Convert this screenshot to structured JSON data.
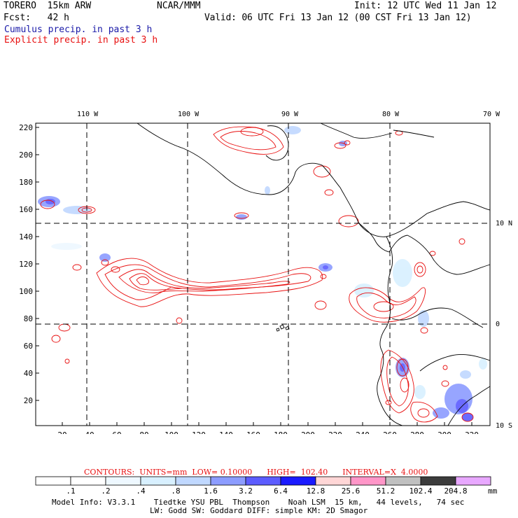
{
  "header": {
    "model": "TORERO  15km ARW",
    "center": "NCAR/MMM",
    "init": "Init: 12 UTC Wed 11 Jan 12",
    "forecast": "Fcst:   42 h",
    "valid": "Valid: 06 UTC Fri 13 Jan 12 (00 CST Fri 13 Jan 12)",
    "cumulus_label": "Cumulus precip. in past 3 h",
    "explicit_label": "Explicit precip. in past 3 h"
  },
  "map": {
    "lon_labels": [
      "110 W",
      "100 W",
      "90 W",
      "80 W",
      "70 W"
    ],
    "lat_labels": [
      "10 N",
      "0",
      "10 S"
    ],
    "y_ticks": [
      "220",
      "200",
      "180",
      "160",
      "140",
      "120",
      "100",
      "80",
      "60",
      "40",
      "20"
    ],
    "x_ticks": [
      "20",
      "40",
      "60",
      "80",
      "100",
      "120",
      "140",
      "160",
      "180",
      "200",
      "220",
      "240",
      "260",
      "280",
      "300",
      "320"
    ]
  },
  "contours": {
    "text": "CONTOURS:  UNITS=mm  LOW= 0.10000      HIGH=  102.40      INTERVAL=X  4.0000"
  },
  "colorbar": {
    "labels": [
      ".1",
      ".2",
      ".4",
      ".8",
      "1.6",
      "3.2",
      "6.4",
      "12.8",
      "25.6",
      "51.2",
      "102.4",
      "204.8"
    ],
    "unit": "mm",
    "colors": [
      "#ffffff",
      "#ffffff",
      "#eef8ff",
      "#d8f0ff",
      "#c0d8ff",
      "#8c9cff",
      "#5c5cff",
      "#1a1aff",
      "#ffd6d6",
      "#ff96c8",
      "#c0c0c0",
      "#3c3c3c",
      "#e8a8ff"
    ]
  },
  "footer": {
    "line1": "Model Info: V3.3.1    Tiedtke YSU PBL  Thompson    Noah LSM  15 km,   44 levels,   74 sec",
    "line2": "LW: Godd SW: Goddard DIFF: simple KM: 2D Smagor"
  }
}
